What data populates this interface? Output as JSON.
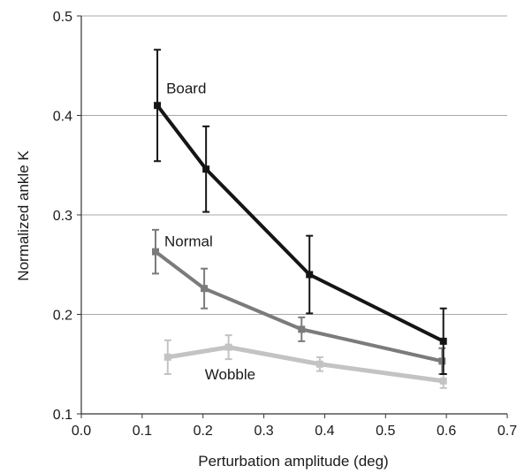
{
  "chart_data": {
    "type": "line",
    "xlabel": "Perturbation amplitude (deg)",
    "ylabel": "Normalized ankle K",
    "xlim": [
      0,
      0.7
    ],
    "ylim": [
      0.1,
      0.5
    ],
    "xticks": [
      "0.0",
      "0.1",
      "0.2",
      "0.3",
      "0.4",
      "0.5",
      "0.6",
      "0.7"
    ],
    "yticks": [
      "0.1",
      "0.2",
      "0.3",
      "0.4",
      "0.5"
    ],
    "grid": "horizontal",
    "legend": "none",
    "series": [
      {
        "name": "Board",
        "color": "#151515",
        "x": [
          0.125,
          0.205,
          0.375,
          0.595
        ],
        "y": [
          0.41,
          0.346,
          0.24,
          0.173
        ],
        "err": [
          0.056,
          0.043,
          0.039,
          0.033
        ]
      },
      {
        "name": "Normal",
        "color": "#7b7b7b",
        "x": [
          0.122,
          0.202,
          0.362,
          0.593
        ],
        "y": [
          0.263,
          0.226,
          0.185,
          0.153
        ],
        "err": [
          0.022,
          0.02,
          0.012,
          0.013
        ]
      },
      {
        "name": "Wobble",
        "color": "#c3c3c3",
        "x": [
          0.142,
          0.242,
          0.392,
          0.595
        ],
        "y": [
          0.157,
          0.167,
          0.15,
          0.133
        ],
        "err": [
          0.017,
          0.012,
          0.007,
          0.007
        ]
      }
    ]
  }
}
